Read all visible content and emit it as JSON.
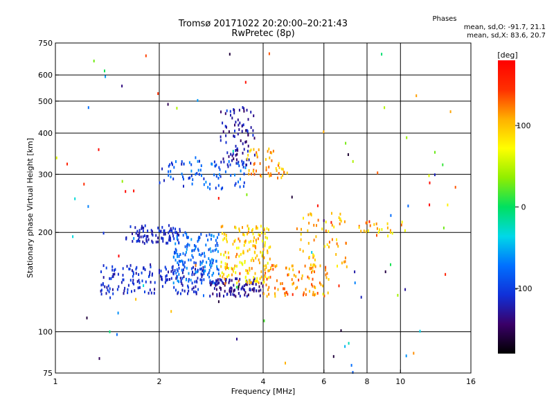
{
  "header": {
    "title_line1": "Tromsø 20171022 20:20:00–20:21:43",
    "title_line2": "RwPretec (8p)",
    "stats_title": "Phases",
    "stats_o": "mean, sd,O: -91.7, 21.1",
    "stats_x": "mean, sd,X:  83.6, 20.7"
  },
  "chart_data": {
    "type": "scatter",
    "xlabel": "Frequency [MHz]",
    "ylabel": "Stationary phase Virtual Height [km]",
    "x_scale": "log",
    "y_scale": "log",
    "xlim": [
      1,
      16
    ],
    "ylim": [
      75,
      750
    ],
    "x_ticks": [
      1,
      2,
      4,
      6,
      8,
      10,
      16
    ],
    "x_grid": [
      2,
      4,
      6,
      8,
      10
    ],
    "y_ticks": [
      75,
      100,
      200,
      300,
      400,
      500,
      600,
      750
    ],
    "grid": true,
    "colorbar": {
      "label": "[deg]",
      "range": [
        -180,
        180
      ],
      "ticks": [
        100,
        0,
        -100
      ],
      "stops": [
        "#000000",
        "#3a0068",
        "#1030d8",
        "#0070ff",
        "#00d8e8",
        "#00e060",
        "#90ee00",
        "#ffff00",
        "#ffb000",
        "#ff3000",
        "#ff0000"
      ]
    },
    "clusters": [
      {
        "x": [
          1.6,
          2.3
        ],
        "y": [
          185,
          210
        ],
        "phase": [
          -100,
          -130
        ],
        "n": 90
      },
      {
        "x": [
          1.35,
          2.7
        ],
        "y": [
          130,
          160
        ],
        "phase": [
          -95,
          -130
        ],
        "n": 170
      },
      {
        "x": [
          2.2,
          3.0
        ],
        "y": [
          140,
          200
        ],
        "phase": [
          -55,
          -100
        ],
        "n": 150
      },
      {
        "x": [
          2.8,
          4.0
        ],
        "y": [
          128,
          145
        ],
        "phase": [
          -110,
          -150
        ],
        "n": 110
      },
      {
        "x": [
          3.0,
          4.2
        ],
        "y": [
          140,
          210
        ],
        "phase": [
          60,
          130
        ],
        "n": 170
      },
      {
        "x": [
          4.0,
          6.2
        ],
        "y": [
          128,
          160
        ],
        "phase": [
          90,
          140
        ],
        "n": 90
      },
      {
        "x": [
          5.0,
          7.0
        ],
        "y": [
          150,
          230
        ],
        "phase": [
          75,
          130
        ],
        "n": 60
      },
      {
        "x": [
          2.0,
          3.6
        ],
        "y": [
          270,
          330
        ],
        "phase": [
          -60,
          -120
        ],
        "n": 90
      },
      {
        "x": [
          3.0,
          3.8
        ],
        "y": [
          320,
          480
        ],
        "phase": [
          -105,
          -150
        ],
        "n": 80
      },
      {
        "x": [
          3.6,
          4.7
        ],
        "y": [
          290,
          360
        ],
        "phase": [
          85,
          135
        ],
        "n": 50
      },
      {
        "x": [
          7.5,
          10.5
        ],
        "y": [
          195,
          215
        ],
        "phase": [
          60,
          140
        ],
        "n": 25
      },
      {
        "x": [
          1.0,
          15.0
        ],
        "y": [
          75,
          700
        ],
        "phase": [
          -180,
          180
        ],
        "n": 100
      }
    ]
  }
}
